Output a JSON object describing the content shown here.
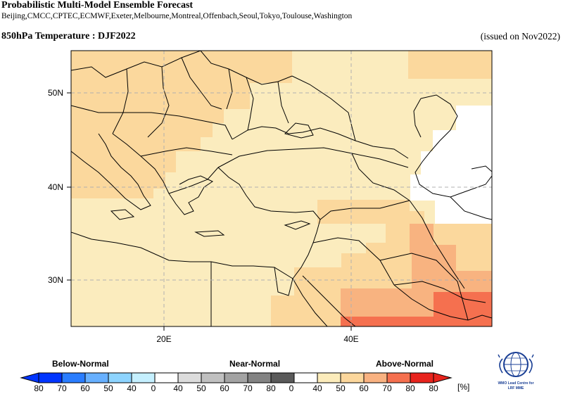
{
  "header": {
    "title": "Probabilistic Multi-Model Ensemble Forecast",
    "models": "Beijing,CMCC,CPTEC,ECMWF,Exeter,Melbourne,Montreal,Offenbach,Seoul,Tokyo,Toulouse,Washington",
    "variable_title": "850hPa Temperature : DJF2022",
    "issued": "(issued on Nov2022)"
  },
  "map": {
    "lat_labels": [
      "50N",
      "40N",
      "30N"
    ],
    "lon_labels": [
      "20E",
      "40E"
    ],
    "colors": {
      "above_40": "#fbecbe",
      "above_50": "#fbd89d",
      "above_60": "#f8b380",
      "above_70": "#f5704f",
      "no_signal": "#ffffff",
      "border": "#000000",
      "grid": "#b0b0b0"
    }
  },
  "legend": {
    "categories": [
      "Below-Normal",
      "Near-Normal",
      "Above-Normal"
    ],
    "unit": "[%]",
    "below": {
      "labels": [
        "80",
        "70",
        "60",
        "50",
        "40"
      ],
      "colors": [
        "#0035ff",
        "#2a7dff",
        "#67b0ff",
        "#8dd4ff",
        "#c5f0ff"
      ]
    },
    "near": {
      "labels": [
        "0",
        "40",
        "50",
        "60",
        "70",
        "80"
      ],
      "colors": [
        "#ffffff",
        "#dcdcdc",
        "#c0c0c0",
        "#a3a3a3",
        "#838383",
        "#5a5a5a"
      ]
    },
    "above": {
      "labels": [
        "0",
        "40",
        "50",
        "60",
        "70",
        "80"
      ],
      "colors": [
        "#ffffff",
        "#fcecbb",
        "#fcd79c",
        "#f9b281",
        "#f5704f",
        "#e8231d"
      ]
    }
  },
  "logo": {
    "line1": "WMO Lead Centre for",
    "line2": "LRF MME"
  }
}
